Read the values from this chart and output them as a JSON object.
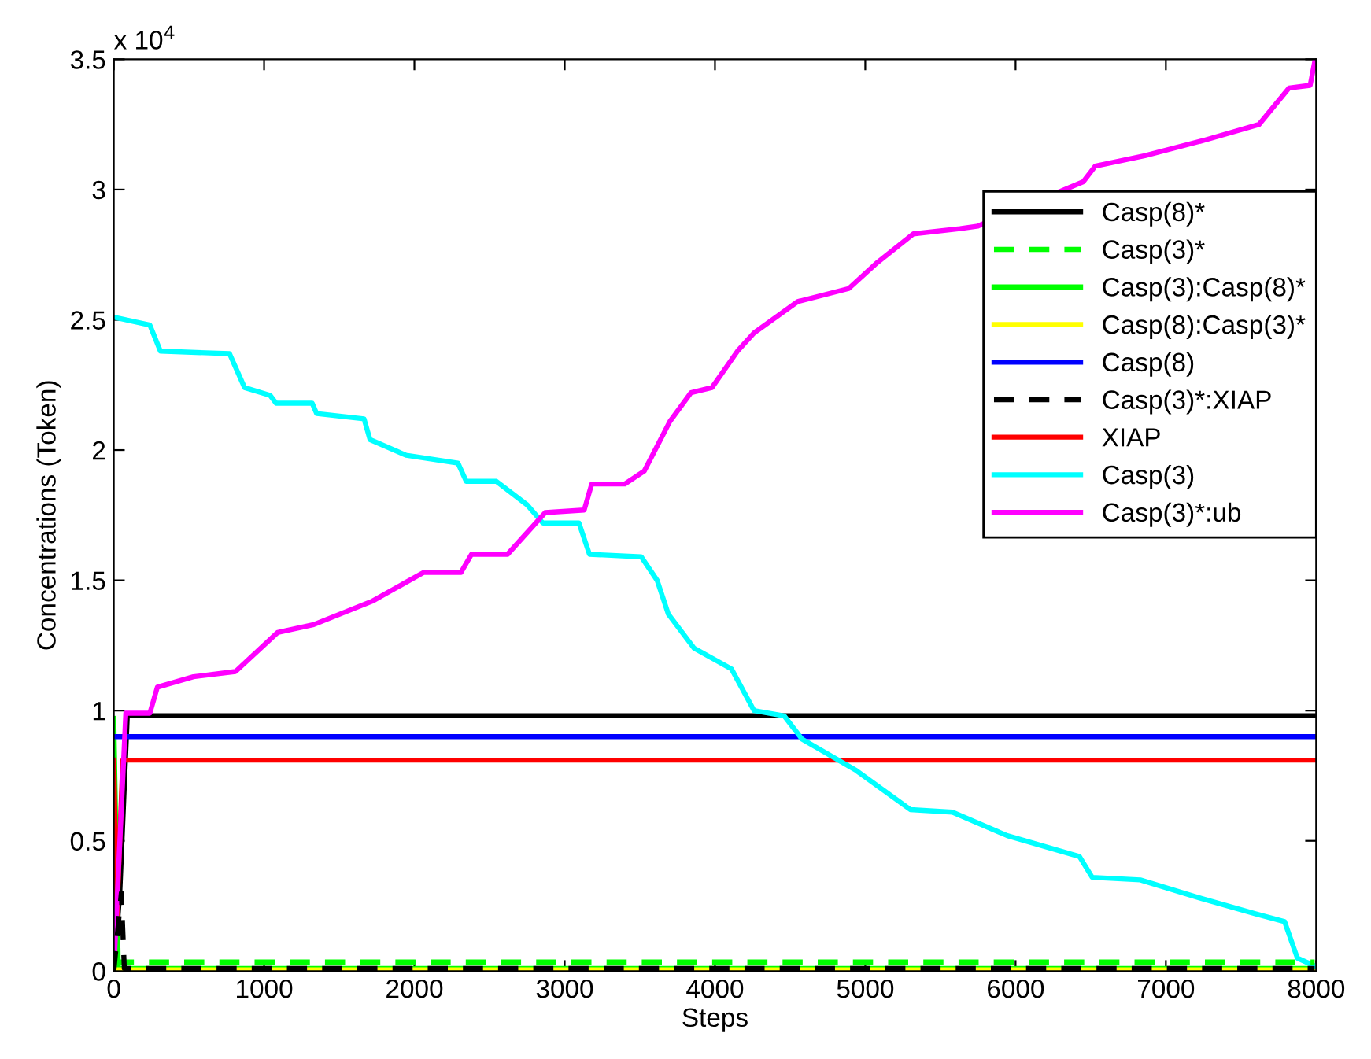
{
  "chart_data": {
    "type": "line",
    "xlabel": "Steps",
    "ylabel": "Concentrations (Token)",
    "annotations": [
      "x 10$^{4}$"
    ],
    "xlim": [
      0,
      8000
    ],
    "xticks": [
      0,
      1000,
      2000,
      3000,
      4000,
      5000,
      6000,
      7000,
      8000
    ],
    "ylim": [
      0,
      3.5
    ],
    "yticks": [
      0,
      0.5,
      1,
      1.5,
      2,
      2.5,
      3,
      3.5
    ],
    "grid": false,
    "legend": "right",
    "series": [
      {
        "name": "Casp(8)*",
        "color": "#000000",
        "line_style": "solid",
        "x": [
          0,
          40,
          90,
          7990
        ],
        "values": [
          0,
          0.3,
          0.98,
          0.98
        ]
      },
      {
        "name": "Casp(3)*",
        "color": "#00ff00",
        "line_style": "dashed",
        "x": [
          0,
          7990
        ],
        "values": [
          0.035,
          0.035
        ]
      },
      {
        "name": "Casp(3):Casp(8)*",
        "color": "#00ff00",
        "line_style": "solid",
        "x": [
          0,
          30,
          7990
        ],
        "values": [
          0.97,
          0.01,
          0.01
        ]
      },
      {
        "name": "Casp(8):Casp(3)*",
        "color": "#ffff00",
        "line_style": "solid",
        "x": [
          0,
          7990
        ],
        "values": [
          0.005,
          0.005
        ]
      },
      {
        "name": "Casp(8)",
        "color": "#0000ff",
        "line_style": "solid",
        "x": [
          0,
          7990
        ],
        "values": [
          0.9,
          0.9
        ]
      },
      {
        "name": "Casp(3)*:XIAP",
        "color": "#000000",
        "line_style": "dashed",
        "x": [
          0,
          50,
          70,
          7990
        ],
        "values": [
          0,
          0.3,
          0.01,
          0.01
        ]
      },
      {
        "name": "XIAP",
        "color": "#ff0000",
        "line_style": "solid",
        "x": [
          0,
          20,
          60,
          7990
        ],
        "values": [
          0.81,
          0.2,
          0.81,
          0.81
        ]
      },
      {
        "name": "Casp(3)",
        "color": "#00ffff",
        "line_style": "solid",
        "x": [
          0,
          240,
          310,
          770,
          870,
          1040,
          1080,
          1320,
          1350,
          1665,
          1705,
          1945,
          2290,
          2345,
          2545,
          2750,
          2855,
          3095,
          3165,
          3510,
          3615,
          3690,
          3860,
          4110,
          4260,
          4460,
          4580,
          4940,
          5300,
          5580,
          5945,
          6425,
          6510,
          6830,
          7230,
          7595,
          7790,
          7875,
          7990
        ],
        "values": [
          2.51,
          2.48,
          2.38,
          2.37,
          2.24,
          2.21,
          2.18,
          2.18,
          2.14,
          2.12,
          2.04,
          1.98,
          1.95,
          1.88,
          1.88,
          1.79,
          1.72,
          1.72,
          1.6,
          1.59,
          1.5,
          1.37,
          1.24,
          1.16,
          1.0,
          0.98,
          0.89,
          0.77,
          0.62,
          0.61,
          0.52,
          0.44,
          0.36,
          0.35,
          0.28,
          0.22,
          0.19,
          0.05,
          0.02
        ]
      },
      {
        "name": "Casp(3)*:ub",
        "color": "#ff00ff",
        "line_style": "solid",
        "x": [
          0,
          80,
          240,
          290,
          530,
          810,
          1090,
          1330,
          1720,
          2060,
          2310,
          2380,
          2620,
          2870,
          3130,
          3180,
          3400,
          3530,
          3700,
          3840,
          3980,
          4150,
          4260,
          4550,
          4890,
          5080,
          5320,
          5630,
          5750,
          6450,
          6530,
          6860,
          7260,
          7620,
          7820,
          7960,
          7990
        ],
        "values": [
          0,
          0.99,
          0.99,
          1.09,
          1.13,
          1.15,
          1.3,
          1.33,
          1.42,
          1.53,
          1.53,
          1.6,
          1.6,
          1.76,
          1.77,
          1.87,
          1.87,
          1.92,
          2.11,
          2.22,
          2.24,
          2.38,
          2.45,
          2.57,
          2.62,
          2.72,
          2.83,
          2.85,
          2.86,
          3.03,
          3.09,
          3.13,
          3.19,
          3.25,
          3.39,
          3.4,
          3.49
        ]
      }
    ]
  }
}
